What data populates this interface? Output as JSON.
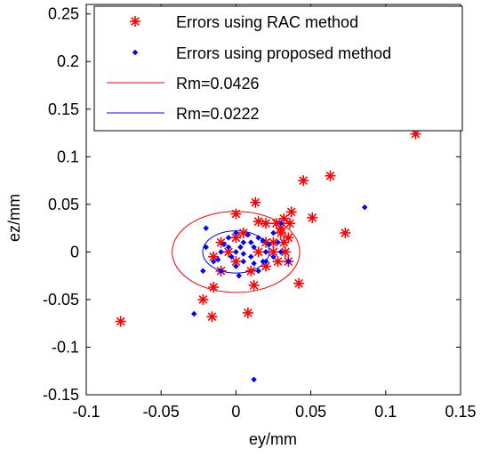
{
  "chart_data": {
    "type": "scatter",
    "xlabel": "ey/mm",
    "ylabel": "ez/mm",
    "xlim": [
      -0.1,
      0.15
    ],
    "ylim": [
      -0.15,
      0.26
    ],
    "xticks": [
      -0.1,
      -0.05,
      0,
      0.05,
      0.1,
      0.15
    ],
    "xtick_labels": [
      "-0.1",
      "-0.05",
      "0",
      "0.05",
      "0.1",
      "0.15"
    ],
    "yticks": [
      -0.15,
      -0.1,
      -0.05,
      0,
      0.05,
      0.1,
      0.15,
      0.2,
      0.25
    ],
    "ytick_labels": [
      "-0.15",
      "-0.1",
      "-0.05",
      "0",
      "0.05",
      "0.1",
      "0.15",
      "0.2",
      "0.25"
    ],
    "legend_position": "top-right",
    "series": [
      {
        "name": "Errors using RAC method",
        "marker": "star",
        "color": "#ff0000",
        "points": [
          [
            0.12,
            0.124
          ],
          [
            0.063,
            0.08
          ],
          [
            0.045,
            0.075
          ],
          [
            0.073,
            0.02
          ],
          [
            0.051,
            0.036
          ],
          [
            0.037,
            0.042
          ],
          [
            0.036,
            0.03
          ],
          [
            0.032,
            0.035
          ],
          [
            0.027,
            0.03
          ],
          [
            0.02,
            0.03
          ],
          [
            0.013,
            0.052
          ],
          [
            0.0,
            0.04
          ],
          [
            0.015,
            0.032
          ],
          [
            0.005,
            0.02
          ],
          [
            0.0,
            0.015
          ],
          [
            0.015,
            0.0
          ],
          [
            0.025,
            0.01
          ],
          [
            0.03,
            0.02
          ],
          [
            0.035,
            0.015
          ],
          [
            0.033,
            0.0
          ],
          [
            0.028,
            -0.01
          ],
          [
            0.02,
            -0.015
          ],
          [
            0.01,
            -0.02
          ],
          [
            0.0,
            -0.01
          ],
          [
            -0.005,
            0.0
          ],
          [
            -0.01,
            0.01
          ],
          [
            -0.015,
            -0.005
          ],
          [
            -0.01,
            -0.02
          ],
          [
            -0.015,
            -0.037
          ],
          [
            -0.022,
            -0.05
          ],
          [
            -0.016,
            -0.068
          ],
          [
            0.008,
            -0.064
          ],
          [
            0.012,
            -0.035
          ],
          [
            0.042,
            -0.033
          ],
          [
            0.035,
            -0.01
          ],
          [
            0.032,
            0.01
          ],
          [
            0.025,
            0.0
          ],
          [
            0.02,
            0.01
          ],
          [
            -0.077,
            -0.073
          ],
          [
            0.03,
            0.025
          ]
        ]
      },
      {
        "name": "Errors using proposed method",
        "marker": "dot",
        "color": "#0000ff",
        "points": [
          [
            0.086,
            0.047
          ],
          [
            0.03,
            0.03
          ],
          [
            0.028,
            0.01
          ],
          [
            0.025,
            0.02
          ],
          [
            0.02,
            0.0
          ],
          [
            0.018,
            -0.01
          ],
          [
            0.015,
            0.015
          ],
          [
            0.012,
            0.005
          ],
          [
            0.01,
            -0.005
          ],
          [
            0.005,
            0.01
          ],
          [
            0.0,
            0.02
          ],
          [
            -0.005,
            0.005
          ],
          [
            -0.01,
            0.0
          ],
          [
            -0.015,
            -0.01
          ],
          [
            -0.02,
            0.005
          ],
          [
            -0.01,
            -0.02
          ],
          [
            0.0,
            -0.015
          ],
          [
            0.005,
            -0.01
          ],
          [
            0.01,
            0.01
          ],
          [
            0.015,
            -0.02
          ],
          [
            0.02,
            -0.01
          ],
          [
            0.025,
            -0.005
          ],
          [
            0.03,
            0.0
          ],
          [
            -0.02,
            0.025
          ],
          [
            -0.028,
            -0.065
          ],
          [
            -0.022,
            -0.02
          ],
          [
            0.012,
            -0.134
          ],
          [
            0.035,
            -0.01
          ],
          [
            -0.005,
            0.015
          ],
          [
            0.0,
            0.0
          ],
          [
            0.005,
            -0.002
          ],
          [
            -0.008,
            0.008
          ],
          [
            0.008,
            0.018
          ],
          [
            0.018,
            0.012
          ],
          [
            0.022,
            0.008
          ],
          [
            -0.012,
            -0.008
          ],
          [
            0.002,
            -0.025
          ],
          [
            0.012,
            -0.012
          ],
          [
            0.003,
            0.005
          ],
          [
            -0.003,
            -0.005
          ]
        ]
      }
    ],
    "circles": [
      {
        "name": "Rm=0.0426",
        "radius": 0.0426,
        "center": [
          0,
          0
        ],
        "color": "#ff0000"
      },
      {
        "name": "Rm=0.0222",
        "radius": 0.0222,
        "center": [
          0,
          0
        ],
        "color": "#0000ff"
      }
    ]
  }
}
